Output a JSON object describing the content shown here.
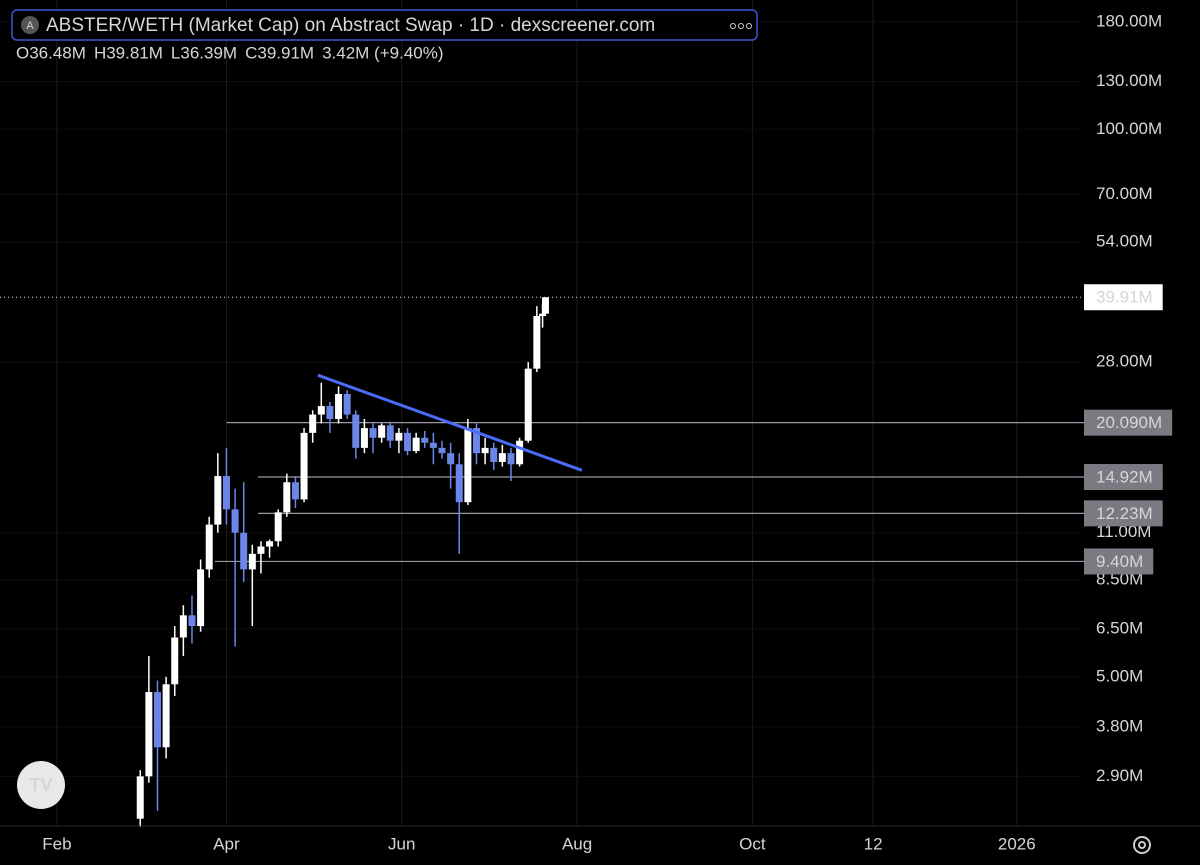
{
  "chart_data": {
    "type": "candlestick",
    "title": "ABSTER/WETH (Market Cap) on Abstract Swap · 1D · dexscreener.com",
    "icon_letter": "A",
    "ohlc_labels": [
      "O36.48M",
      "H39.81M",
      "L36.39M",
      "C39.91M",
      "3.42M (+9.40%)"
    ],
    "log_scale": true,
    "grid": true,
    "up_color": "#ffffff",
    "down_color": "#6b86e8",
    "x": [
      61,
      64,
      67,
      70,
      73,
      76,
      79,
      82,
      85,
      88,
      91,
      94,
      97,
      100,
      103,
      106,
      109,
      112,
      115,
      118,
      121,
      124,
      127,
      130,
      133,
      136,
      139,
      142,
      145,
      148,
      151,
      154,
      157,
      160,
      163,
      166,
      169,
      172,
      175,
      178,
      181,
      184,
      187,
      190,
      193,
      196,
      199,
      201,
      202
    ],
    "open": [
      2.3,
      2.9,
      4.6,
      3.4,
      4.8,
      6.2,
      7.0,
      6.6,
      9.0,
      11.5,
      15.0,
      12.5,
      11.0,
      9.0,
      9.8,
      10.2,
      10.5,
      12.3,
      14.5,
      13.2,
      19.0,
      21.0,
      22.0,
      20.5,
      23.5,
      21.0,
      17.5,
      19.5,
      18.5,
      19.8,
      18.2,
      19.0,
      17.2,
      18.5,
      18.0,
      17.5,
      17.0,
      16.0,
      13.0,
      19.5,
      17.0,
      17.5,
      16.2,
      17.0,
      16.0,
      18.2,
      27.0,
      36.0,
      36.48
    ],
    "high": [
      3.0,
      5.6,
      4.9,
      5.0,
      6.6,
      7.4,
      7.8,
      9.5,
      12.0,
      17.0,
      17.5,
      14.0,
      14.5,
      10.3,
      10.5,
      10.6,
      12.5,
      15.2,
      15.0,
      19.5,
      21.5,
      25.0,
      22.5,
      24.5,
      24.0,
      21.5,
      20.5,
      20.0,
      20.0,
      20.2,
      19.5,
      19.5,
      19.0,
      19.2,
      19.0,
      18.2,
      18.0,
      17.0,
      20.5,
      20.0,
      18.5,
      18.0,
      17.8,
      17.5,
      18.5,
      28.0,
      38.0,
      38.5,
      39.81
    ],
    "low": [
      2.2,
      2.8,
      2.4,
      3.2,
      4.5,
      5.6,
      6.0,
      6.4,
      8.6,
      11.0,
      11.5,
      5.9,
      8.4,
      6.6,
      8.8,
      9.6,
      10.2,
      12.0,
      12.6,
      13.0,
      18.0,
      20.0,
      19.0,
      20.0,
      20.5,
      16.5,
      17.0,
      17.0,
      18.0,
      17.5,
      17.0,
      16.8,
      17.0,
      17.5,
      16.0,
      16.5,
      14.0,
      9.8,
      12.8,
      16.0,
      16.0,
      15.5,
      15.8,
      14.6,
      15.8,
      18.0,
      26.5,
      33.8,
      36.39
    ],
    "close": [
      2.9,
      4.6,
      3.4,
      4.8,
      6.2,
      7.0,
      6.6,
      9.0,
      11.5,
      15.0,
      12.5,
      11.0,
      9.0,
      9.8,
      10.2,
      10.5,
      12.3,
      14.5,
      13.2,
      19.0,
      21.0,
      22.0,
      20.5,
      23.5,
      21.0,
      17.5,
      19.5,
      18.5,
      19.8,
      18.2,
      19.0,
      17.2,
      18.5,
      18.0,
      17.5,
      17.0,
      16.0,
      13.0,
      19.5,
      17.0,
      17.5,
      16.2,
      17.0,
      16.0,
      18.2,
      27.0,
      36.0,
      36.48,
      39.91
    ],
    "xlim": [
      12.2,
      388
    ],
    "xticks": [
      {
        "value": 32,
        "label": "Feb"
      },
      {
        "value": 91,
        "label": "Apr"
      },
      {
        "value": 152,
        "label": "Jun"
      },
      {
        "value": 213,
        "label": "Aug"
      },
      {
        "value": 274,
        "label": "Oct"
      },
      {
        "value": 316,
        "label": "12"
      },
      {
        "value": 366,
        "label": "2026"
      }
    ],
    "ylim": [
      2.21,
      203
    ],
    "yticks": [
      {
        "value": 180,
        "label": "180.00M"
      },
      {
        "value": 130,
        "label": "130.00M"
      },
      {
        "value": 100,
        "label": "100.00M"
      },
      {
        "value": 70,
        "label": "70.00M"
      },
      {
        "value": 54,
        "label": "54.00M"
      },
      {
        "value": 28,
        "label": "28.00M"
      },
      {
        "value": 11,
        "label": "11.00M"
      },
      {
        "value": 8.5,
        "label": "8.50M"
      },
      {
        "value": 6.5,
        "label": "6.50M"
      },
      {
        "value": 5,
        "label": "5.00M"
      },
      {
        "value": 3.8,
        "label": "3.80M"
      },
      {
        "value": 2.9,
        "label": "2.90M"
      }
    ],
    "last_price": {
      "value": 39.91,
      "label": "39.91M"
    },
    "levels": [
      {
        "value": 20.09,
        "label": "20.090M",
        "from": 91
      },
      {
        "value": 14.92,
        "label": "14.92M",
        "from": 102
      },
      {
        "value": 12.23,
        "label": "12.23M",
        "from": 102
      },
      {
        "value": 9.4,
        "label": "9.40M",
        "from": 87
      }
    ],
    "trendline": {
      "color": "#4a6cf7",
      "x": [
        122.8,
        214.7
      ],
      "y": [
        26.05,
        15.48
      ]
    }
  }
}
